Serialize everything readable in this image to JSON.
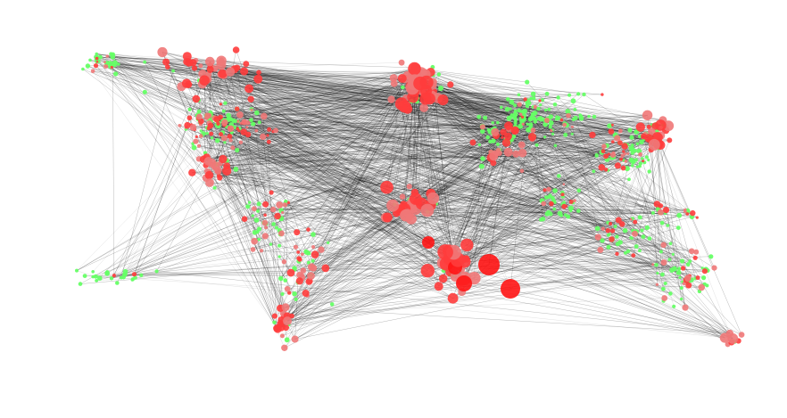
{
  "diagram": {
    "type": "network-graph",
    "colors": {
      "background": "#ffffff",
      "edge": "#000000",
      "node_green": "#66ff66",
      "node_pink": "#f07878",
      "node_red": "#ff3c3c",
      "node_bright_red": "#ff1414"
    },
    "legend": null,
    "title": null
  }
}
